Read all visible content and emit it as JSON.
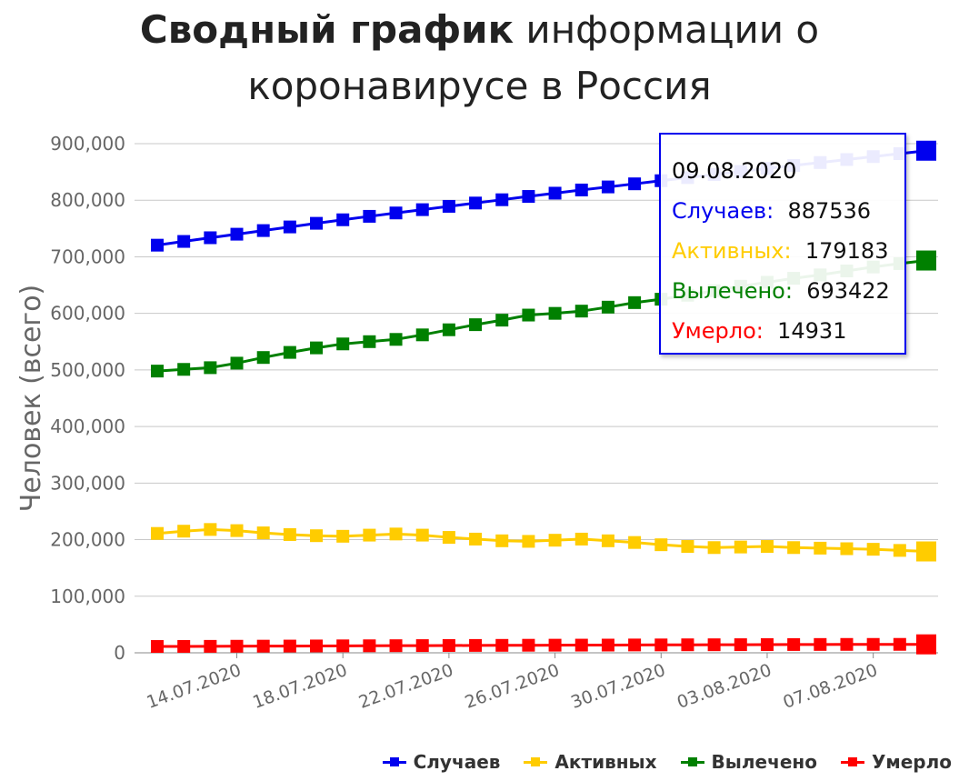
{
  "title": {
    "bold": "Сводный график",
    "rest": " информации о",
    "line2": "коронавирусе в Россия"
  },
  "chart_data": {
    "type": "line",
    "ylabel": "Человек (всего)",
    "ylim": [
      0,
      900000
    ],
    "yticks": [
      0,
      100000,
      200000,
      300000,
      400000,
      500000,
      600000,
      700000,
      800000,
      900000
    ],
    "ytick_labels": [
      "0",
      "100,000",
      "200,000",
      "300,000",
      "400,000",
      "500,000",
      "600,000",
      "700,000",
      "800,000",
      "900,000"
    ],
    "grid": true,
    "legend_position": "bottom-right",
    "x": [
      "11.07.2020",
      "12.07.2020",
      "13.07.2020",
      "14.07.2020",
      "15.07.2020",
      "16.07.2020",
      "17.07.2020",
      "18.07.2020",
      "19.07.2020",
      "20.07.2020",
      "21.07.2020",
      "22.07.2020",
      "23.07.2020",
      "24.07.2020",
      "25.07.2020",
      "26.07.2020",
      "27.07.2020",
      "28.07.2020",
      "29.07.2020",
      "30.07.2020",
      "31.07.2020",
      "01.08.2020",
      "02.08.2020",
      "03.08.2020",
      "04.08.2020",
      "05.08.2020",
      "06.08.2020",
      "07.08.2020",
      "08.08.2020",
      "09.08.2020"
    ],
    "xtick_labels": [
      "14.07.2020",
      "18.07.2020",
      "22.07.2020",
      "26.07.2020",
      "30.07.2020",
      "03.08.2020",
      "07.08.2020"
    ],
    "series": [
      {
        "name": "Случаев",
        "color": "#0000ee",
        "values": [
          720547,
          727162,
          733699,
          739947,
          746369,
          752797,
          759203,
          765437,
          771546,
          777486,
          783328,
          789190,
          795038,
          800849,
          806720,
          812485,
          818120,
          823515,
          828990,
          834499,
          839981,
          845443,
          850870,
          856264,
          861423,
          866627,
          871894,
          877135,
          882347,
          887536
        ]
      },
      {
        "name": "Активных",
        "color": "#ffcc00",
        "values": [
          211000,
          215000,
          218000,
          216000,
          212000,
          209000,
          207000,
          206000,
          208000,
          210000,
          208000,
          204000,
          201000,
          198000,
          197000,
          199000,
          201000,
          198000,
          195000,
          191000,
          188000,
          186000,
          187000,
          188000,
          186000,
          185000,
          184000,
          183000,
          181000,
          179183
        ]
      },
      {
        "name": "Вылечено",
        "color": "#008000",
        "values": [
          498000,
          501000,
          504000,
          512000,
          522000,
          531000,
          539000,
          546000,
          550000,
          554000,
          562000,
          571000,
          580000,
          588000,
          597000,
          600000,
          604000,
          611000,
          619000,
          625000,
          632000,
          640000,
          648000,
          655000,
          662000,
          668000,
          675000,
          682000,
          688000,
          693422
        ]
      },
      {
        "name": "Умерло",
        "color": "#ff0000",
        "values": [
          11205,
          11335,
          11439,
          11614,
          11770,
          11937,
          12123,
          12323,
          12427,
          12580,
          12745,
          12892,
          13026,
          13172,
          13354,
          13483,
          13579,
          13650,
          13851,
          13963,
          14128,
          14207,
          14351,
          14490,
          14606,
          14725,
          14827,
          14854,
          14903,
          14931
        ]
      }
    ]
  },
  "tooltip": {
    "date": "09.08.2020",
    "rows": [
      {
        "label": "Случаев:",
        "value": "887536",
        "color": "#0000ee"
      },
      {
        "label": "Активных:",
        "value": "179183",
        "color": "#ffcc00"
      },
      {
        "label": "Вылечено:",
        "value": "693422",
        "color": "#008000"
      },
      {
        "label": "Умерло:",
        "value": "14931",
        "color": "#ff0000"
      }
    ]
  },
  "legend": [
    {
      "label": "Случаев",
      "color": "#0000ee"
    },
    {
      "label": "Активных",
      "color": "#ffcc00"
    },
    {
      "label": "Вылечено",
      "color": "#008000"
    },
    {
      "label": "Умерло",
      "color": "#ff0000"
    }
  ]
}
